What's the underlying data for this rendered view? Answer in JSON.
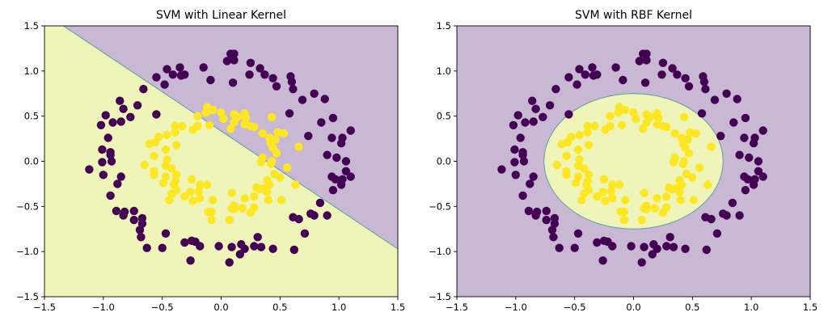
{
  "colors": {
    "class0": "#440154",
    "class1": "#fde725",
    "region0": "#c8b8d4",
    "region1": "#eff5b9",
    "boundary": "#5a9fa0"
  },
  "chart_data": [
    {
      "type": "scatter",
      "title": "SVM with Linear Kernel",
      "xlabel": "",
      "ylabel": "",
      "xlim": [
        -1.5,
        1.5
      ],
      "ylim": [
        -1.5,
        1.5
      ],
      "xticks": [
        "−1.5",
        "−1.0",
        "−0.5",
        "0.0",
        "0.5",
        "1.0",
        "1.5"
      ],
      "yticks": [
        "−1.5",
        "−1.0",
        "−0.5",
        "0.0",
        "0.5",
        "1.0",
        "1.5"
      ],
      "xtick_values": [
        -1.5,
        -1.0,
        -0.5,
        0.0,
        0.5,
        1.0,
        1.5
      ],
      "ytick_values": [
        -1.5,
        -1.0,
        -0.5,
        0.0,
        0.5,
        1.0,
        1.5
      ],
      "decision_boundary": {
        "kind": "line",
        "points": [
          [
            -1.34,
            1.5
          ],
          [
            1.5,
            -0.97
          ]
        ]
      },
      "grid": false
    },
    {
      "type": "scatter",
      "title": "SVM with RBF Kernel",
      "xlabel": "",
      "ylabel": "",
      "xlim": [
        -1.5,
        1.5
      ],
      "ylim": [
        -1.5,
        1.5
      ],
      "xticks": [
        "−1.5",
        "−1.0",
        "−0.5",
        "0.0",
        "0.5",
        "1.0",
        "1.5"
      ],
      "yticks": [
        "−1.5",
        "−1.0",
        "−0.5",
        "0.0",
        "0.5",
        "1.0",
        "1.5"
      ],
      "xtick_values": [
        -1.5,
        -1.0,
        -0.5,
        0.0,
        0.5,
        1.0,
        1.5
      ],
      "ytick_values": [
        -1.5,
        -1.0,
        -0.5,
        0.0,
        0.5,
        1.0,
        1.5
      ],
      "decision_boundary": {
        "kind": "ellipse",
        "center": [
          0.0,
          0.0
        ],
        "radii": [
          0.76,
          0.75
        ]
      },
      "grid": false
    }
  ],
  "points": {
    "class0": [
      [
        -0.46,
        1.02
      ],
      [
        -0.41,
        0.96
      ],
      [
        -0.35,
        1.04
      ],
      [
        -0.34,
        0.95
      ],
      [
        -0.31,
        0.96
      ],
      [
        -0.55,
        0.93
      ],
      [
        -0.48,
        0.85
      ],
      [
        -0.15,
        1.04
      ],
      [
        -0.09,
        0.9
      ],
      [
        -0.66,
        0.8
      ],
      [
        -0.86,
        0.67
      ],
      [
        -0.83,
        0.58
      ],
      [
        -0.71,
        0.62
      ],
      [
        -0.98,
        0.51
      ],
      [
        -0.77,
        0.49
      ],
      [
        -0.55,
        0.52
      ],
      [
        -0.92,
        0.43
      ],
      [
        -0.85,
        0.44
      ],
      [
        -1.02,
        0.4
      ],
      [
        -0.96,
        0.26
      ],
      [
        -1.01,
        0.13
      ],
      [
        -0.94,
        0.1
      ],
      [
        0.08,
        1.19
      ],
      [
        0.11,
        1.12
      ],
      [
        0.05,
        1.11
      ],
      [
        0.25,
        1.09
      ],
      [
        0.33,
        1.03
      ],
      [
        0.24,
        0.96
      ],
      [
        0.37,
        0.96
      ],
      [
        0.44,
        0.92
      ],
      [
        0.59,
        0.94
      ],
      [
        0.6,
        0.88
      ],
      [
        0.47,
        0.83
      ],
      [
        0.1,
        0.87
      ],
      [
        0.61,
        0.8
      ],
      [
        0.69,
        0.68
      ],
      [
        0.79,
        0.75
      ],
      [
        0.88,
        0.69
      ],
      [
        0.58,
        0.53
      ],
      [
        0.95,
        0.48
      ],
      [
        0.85,
        0.43
      ],
      [
        1.1,
        0.34
      ],
      [
        0.74,
        0.28
      ],
      [
        0.94,
        0.26
      ],
      [
        1.03,
        0.26
      ],
      [
        1.02,
        0.2
      ],
      [
        0.9,
        0.07
      ],
      [
        0.98,
        0.04
      ],
      [
        1.06,
        0.0
      ],
      [
        1.06,
        -0.11
      ],
      [
        1.1,
        -0.17
      ],
      [
        0.94,
        -0.17
      ],
      [
        0.97,
        -0.2
      ],
      [
        1.03,
        -0.2
      ],
      [
        1.02,
        -0.26
      ],
      [
        0.95,
        -0.32
      ],
      [
        0.84,
        -0.46
      ],
      [
        0.61,
        -0.62
      ],
      [
        0.66,
        -0.64
      ],
      [
        0.76,
        -0.58
      ],
      [
        0.79,
        -0.6
      ],
      [
        0.9,
        -0.6
      ],
      [
        0.71,
        -0.8
      ],
      [
        0.31,
        -0.84
      ],
      [
        -0.02,
        -0.94
      ],
      [
        0.09,
        -0.95
      ],
      [
        0.17,
        -0.92
      ],
      [
        0.2,
        -0.97
      ],
      [
        0.16,
        -1.03
      ],
      [
        0.28,
        -0.94
      ],
      [
        0.34,
        -0.95
      ],
      [
        0.44,
        -0.97
      ],
      [
        0.62,
        -0.98
      ],
      [
        0.07,
        -1.12
      ],
      [
        -0.94,
        0.07
      ],
      [
        -1.01,
        -0.01
      ],
      [
        -0.93,
        0.0
      ],
      [
        -1.12,
        -0.09
      ],
      [
        -1.0,
        -0.15
      ],
      [
        -0.85,
        -0.17
      ],
      [
        -0.88,
        -0.25
      ],
      [
        -0.94,
        -0.38
      ],
      [
        -0.89,
        -0.55
      ],
      [
        -0.82,
        -0.56
      ],
      [
        -0.83,
        -0.6
      ],
      [
        -0.74,
        -0.55
      ],
      [
        -0.74,
        -0.65
      ],
      [
        -0.67,
        -0.63
      ],
      [
        -0.67,
        -0.69
      ],
      [
        -0.69,
        -0.76
      ],
      [
        -0.68,
        -0.84
      ],
      [
        -0.63,
        -0.96
      ],
      [
        -0.5,
        -0.96
      ],
      [
        -0.47,
        -0.8
      ],
      [
        -0.31,
        -0.9
      ],
      [
        -0.25,
        -0.88
      ],
      [
        -0.22,
        -0.89
      ],
      [
        -0.18,
        -0.94
      ],
      [
        -0.26,
        -1.1
      ],
      [
        0.11,
        1.19
      ]
    ],
    "class1": [
      [
        -0.12,
        0.6
      ],
      [
        -0.13,
        0.54
      ],
      [
        -0.07,
        0.57
      ],
      [
        0.0,
        0.54
      ],
      [
        -0.2,
        0.5
      ],
      [
        0.02,
        0.47
      ],
      [
        -0.1,
        0.4
      ],
      [
        -0.2,
        0.39
      ],
      [
        -0.24,
        0.35
      ],
      [
        -0.39,
        0.39
      ],
      [
        -0.33,
        0.39
      ],
      [
        -0.39,
        0.32
      ],
      [
        -0.46,
        0.29
      ],
      [
        -0.53,
        0.27
      ],
      [
        -0.56,
        0.21
      ],
      [
        -0.61,
        0.19
      ],
      [
        -0.38,
        0.18
      ],
      [
        -0.47,
        0.13
      ],
      [
        -0.57,
        0.06
      ],
      [
        -0.46,
        0.02
      ],
      [
        0.11,
        0.52
      ],
      [
        0.14,
        0.49
      ],
      [
        0.2,
        0.53
      ],
      [
        0.21,
        0.48
      ],
      [
        0.11,
        0.43
      ],
      [
        0.2,
        0.41
      ],
      [
        0.25,
        0.39
      ],
      [
        0.28,
        0.38
      ],
      [
        0.08,
        0.36
      ],
      [
        0.43,
        0.49
      ],
      [
        0.35,
        0.31
      ],
      [
        0.41,
        0.26
      ],
      [
        0.48,
        0.32
      ],
      [
        0.53,
        0.31
      ],
      [
        0.42,
        0.2
      ],
      [
        0.46,
        0.24
      ],
      [
        0.44,
        0.15
      ],
      [
        0.47,
        0.09
      ],
      [
        0.66,
        0.16
      ],
      [
        0.35,
        0.04
      ],
      [
        0.43,
        0.0
      ],
      [
        -0.65,
        -0.04
      ],
      [
        -0.47,
        -0.05
      ],
      [
        -0.42,
        -0.08
      ],
      [
        -0.57,
        -0.11
      ],
      [
        -0.57,
        -0.15
      ],
      [
        -0.47,
        -0.17
      ],
      [
        -0.38,
        -0.15
      ],
      [
        -0.49,
        -0.24
      ],
      [
        -0.39,
        -0.22
      ],
      [
        -0.4,
        -0.26
      ],
      [
        -0.38,
        -0.32
      ],
      [
        -0.25,
        -0.2
      ],
      [
        -0.18,
        -0.26
      ],
      [
        -0.19,
        -0.33
      ],
      [
        -0.26,
        -0.34
      ],
      [
        -0.31,
        -0.39
      ],
      [
        -0.18,
        -0.41
      ],
      [
        -0.24,
        -0.44
      ],
      [
        -0.42,
        -0.36
      ],
      [
        -0.44,
        -0.43
      ],
      [
        -0.07,
        -0.43
      ],
      [
        -0.11,
        -0.56
      ],
      [
        -0.08,
        -0.56
      ],
      [
        -0.08,
        -0.65
      ],
      [
        0.34,
        -0.01
      ],
      [
        0.42,
        -0.03
      ],
      [
        0.56,
        -0.07
      ],
      [
        0.45,
        -0.14
      ],
      [
        0.5,
        -0.18
      ],
      [
        0.39,
        -0.21
      ],
      [
        0.41,
        -0.26
      ],
      [
        0.39,
        -0.34
      ],
      [
        0.3,
        -0.29
      ],
      [
        0.33,
        -0.31
      ],
      [
        0.63,
        -0.26
      ],
      [
        0.09,
        -0.35
      ],
      [
        0.2,
        -0.41
      ],
      [
        0.28,
        -0.39
      ],
      [
        0.4,
        -0.43
      ],
      [
        0.51,
        -0.43
      ],
      [
        0.11,
        -0.49
      ],
      [
        0.09,
        -0.52
      ],
      [
        0.11,
        -0.53
      ],
      [
        0.18,
        -0.52
      ],
      [
        0.28,
        -0.51
      ],
      [
        0.25,
        -0.57
      ],
      [
        0.07,
        -0.65
      ],
      [
        0.36,
        -0.3
      ],
      [
        -0.12,
        -0.26
      ]
    ]
  }
}
